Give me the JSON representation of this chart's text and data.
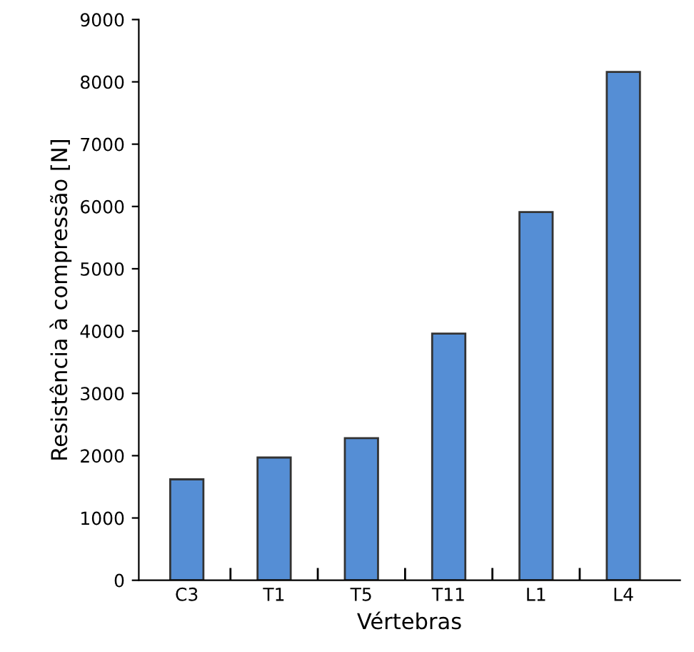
{
  "chart_data": {
    "type": "bar",
    "xlabel": "Vértebras",
    "ylabel": "Resistência à compressão [N]",
    "categories": [
      "C3",
      "T1",
      "T5",
      "T11",
      "L1",
      "L4"
    ],
    "values": [
      1620,
      1970,
      2280,
      3960,
      5910,
      8160
    ],
    "color": "#558ed5",
    "ylim": [
      0,
      9000
    ],
    "yticks": [
      0,
      1000,
      2000,
      3000,
      4000,
      5000,
      6000,
      7000,
      8000,
      9000
    ],
    "grid": false,
    "legend": false
  }
}
